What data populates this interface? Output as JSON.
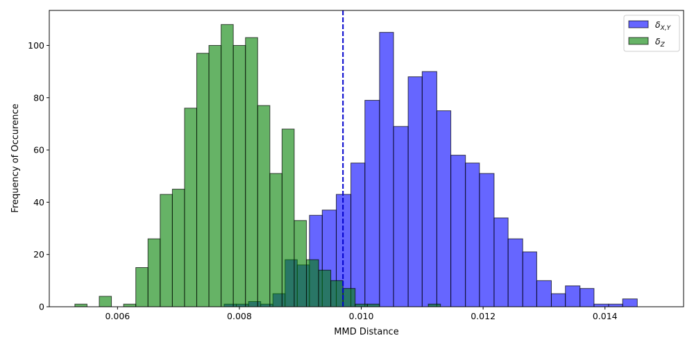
{
  "chart_data": {
    "type": "bar",
    "title": "",
    "xlabel": "MMD Distance",
    "ylabel": "Frequency of Occurence",
    "xlim": [
      0.00488,
      0.01529
    ],
    "ylim": [
      0,
      113.4
    ],
    "xticks": [
      0.006,
      0.008,
      0.01,
      0.012,
      0.014
    ],
    "xtick_labels": [
      "0.006",
      "0.008",
      "0.010",
      "0.012",
      "0.014"
    ],
    "yticks": [
      0,
      20,
      40,
      60,
      80,
      100
    ],
    "ytick_labels": [
      "0",
      "20",
      "40",
      "60",
      "80",
      "100"
    ],
    "threshold": {
      "x": 0.0097,
      "color": "#0000cc",
      "style": "dashed"
    },
    "legend": {
      "position": "top-right"
    },
    "grid": false,
    "series": [
      {
        "name": "δ_{X,Y}",
        "legend_main": "δ",
        "legend_sub": "X,Y",
        "color": "#0000ff",
        "opacity": 0.6,
        "bins": [
          {
            "x0": 0.00775,
            "x1": 0.00795,
            "count": 1
          },
          {
            "x0": 0.00795,
            "x1": 0.00815,
            "count": 1
          },
          {
            "x0": 0.00815,
            "x1": 0.00835,
            "count": 2
          },
          {
            "x0": 0.00835,
            "x1": 0.00855,
            "count": 1
          },
          {
            "x0": 0.00855,
            "x1": 0.00875,
            "count": 5
          },
          {
            "x0": 0.00875,
            "x1": 0.00895,
            "count": 18
          },
          {
            "x0": 0.00895,
            "x1": 0.00915,
            "count": 16
          },
          {
            "x0": 0.00915,
            "x1": 0.00936,
            "count": 35
          },
          {
            "x0": 0.00936,
            "x1": 0.00959,
            "count": 37
          },
          {
            "x0": 0.00959,
            "x1": 0.00983,
            "count": 43
          },
          {
            "x0": 0.00983,
            "x1": 0.01006,
            "count": 55
          },
          {
            "x0": 0.01006,
            "x1": 0.0103,
            "count": 79
          },
          {
            "x0": 0.0103,
            "x1": 0.01053,
            "count": 105
          },
          {
            "x0": 0.01053,
            "x1": 0.01077,
            "count": 69
          },
          {
            "x0": 0.01077,
            "x1": 0.011,
            "count": 88
          },
          {
            "x0": 0.011,
            "x1": 0.01124,
            "count": 90
          },
          {
            "x0": 0.01124,
            "x1": 0.01147,
            "count": 75
          },
          {
            "x0": 0.01147,
            "x1": 0.01171,
            "count": 58
          },
          {
            "x0": 0.01171,
            "x1": 0.01194,
            "count": 55
          },
          {
            "x0": 0.01194,
            "x1": 0.01218,
            "count": 51
          },
          {
            "x0": 0.01218,
            "x1": 0.01241,
            "count": 34
          },
          {
            "x0": 0.01241,
            "x1": 0.01265,
            "count": 26
          },
          {
            "x0": 0.01265,
            "x1": 0.01288,
            "count": 21
          },
          {
            "x0": 0.01288,
            "x1": 0.01312,
            "count": 10
          },
          {
            "x0": 0.01312,
            "x1": 0.01335,
            "count": 5
          },
          {
            "x0": 0.01335,
            "x1": 0.01359,
            "count": 8
          },
          {
            "x0": 0.01359,
            "x1": 0.01382,
            "count": 7
          },
          {
            "x0": 0.01382,
            "x1": 0.01406,
            "count": 1
          },
          {
            "x0": 0.01406,
            "x1": 0.01429,
            "count": 1
          },
          {
            "x0": 0.01429,
            "x1": 0.01453,
            "count": 3
          }
        ]
      },
      {
        "name": "δ_Z",
        "legend_main": "δ",
        "legend_sub": "Z",
        "color": "#008000",
        "opacity": 0.6,
        "bins": [
          {
            "x0": 0.0053,
            "x1": 0.0055,
            "count": 1
          },
          {
            "x0": 0.0055,
            "x1": 0.0057,
            "count": 0
          },
          {
            "x0": 0.0057,
            "x1": 0.0059,
            "count": 4
          },
          {
            "x0": 0.0059,
            "x1": 0.0061,
            "count": 0
          },
          {
            "x0": 0.0061,
            "x1": 0.0063,
            "count": 1
          },
          {
            "x0": 0.0063,
            "x1": 0.0065,
            "count": 15
          },
          {
            "x0": 0.0065,
            "x1": 0.0067,
            "count": 26
          },
          {
            "x0": 0.0067,
            "x1": 0.0069,
            "count": 43
          },
          {
            "x0": 0.0069,
            "x1": 0.0071,
            "count": 45
          },
          {
            "x0": 0.0071,
            "x1": 0.0073,
            "count": 76
          },
          {
            "x0": 0.0073,
            "x1": 0.0075,
            "count": 97
          },
          {
            "x0": 0.0075,
            "x1": 0.0077,
            "count": 100
          },
          {
            "x0": 0.0077,
            "x1": 0.0079,
            "count": 108
          },
          {
            "x0": 0.0079,
            "x1": 0.0081,
            "count": 100
          },
          {
            "x0": 0.0081,
            "x1": 0.0083,
            "count": 103
          },
          {
            "x0": 0.0083,
            "x1": 0.0085,
            "count": 77
          },
          {
            "x0": 0.0085,
            "x1": 0.0087,
            "count": 51
          },
          {
            "x0": 0.0087,
            "x1": 0.0089,
            "count": 68
          },
          {
            "x0": 0.0089,
            "x1": 0.0091,
            "count": 33
          },
          {
            "x0": 0.0091,
            "x1": 0.0093,
            "count": 18
          },
          {
            "x0": 0.0093,
            "x1": 0.0095,
            "count": 14
          },
          {
            "x0": 0.0095,
            "x1": 0.0097,
            "count": 10
          },
          {
            "x0": 0.0097,
            "x1": 0.0099,
            "count": 7
          },
          {
            "x0": 0.0099,
            "x1": 0.0101,
            "count": 1
          },
          {
            "x0": 0.0101,
            "x1": 0.0103,
            "count": 1
          },
          {
            "x0": 0.0103,
            "x1": 0.0105,
            "count": 0
          },
          {
            "x0": 0.0105,
            "x1": 0.0107,
            "count": 0
          },
          {
            "x0": 0.0107,
            "x1": 0.0109,
            "count": 0
          },
          {
            "x0": 0.0109,
            "x1": 0.0111,
            "count": 0
          },
          {
            "x0": 0.0111,
            "x1": 0.0113,
            "count": 1
          }
        ]
      }
    ]
  }
}
